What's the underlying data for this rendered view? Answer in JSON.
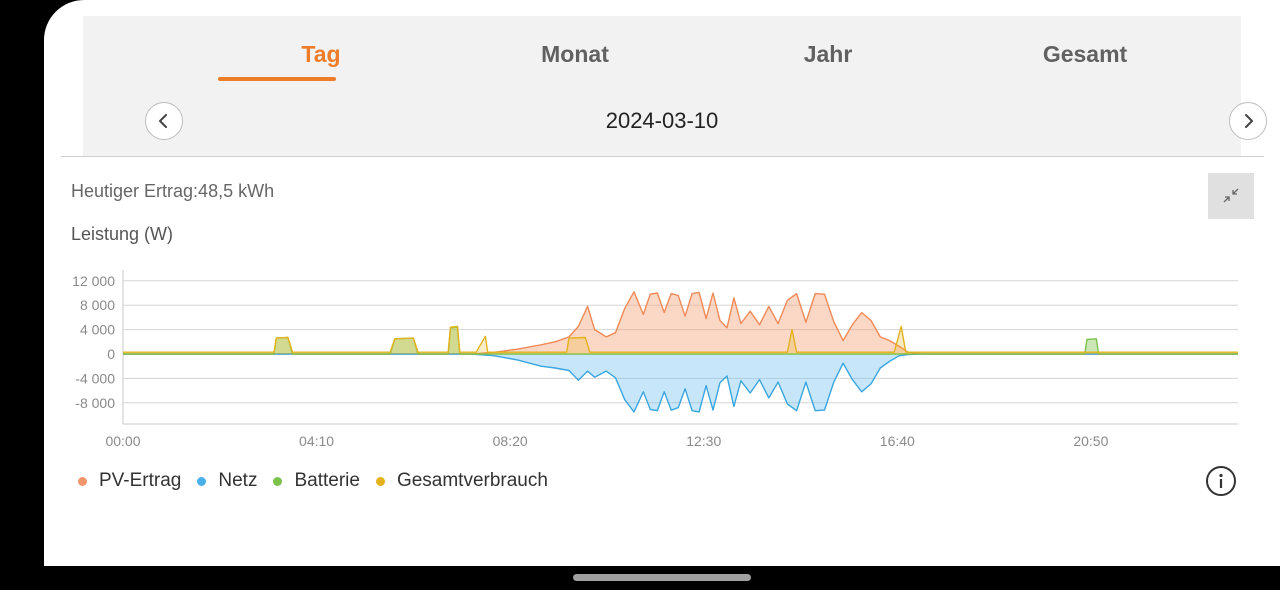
{
  "tabs": [
    {
      "label": "Tag",
      "active": true
    },
    {
      "label": "Monat",
      "active": false
    },
    {
      "label": "Jahr",
      "active": false
    },
    {
      "label": "Gesamt",
      "active": false
    }
  ],
  "date_nav": {
    "date": "2024-03-10"
  },
  "summary": {
    "daily_yield": "Heutiger Ertrag:48,5 kWh"
  },
  "chart_header": {
    "unit_label": "Leistung (W)"
  },
  "icons": {
    "prev": "chevron-left-icon",
    "next": "chevron-right-icon",
    "collapse": "collapse-icon",
    "info": "info-icon"
  },
  "colors": {
    "accent": "#ee7d2a",
    "pv": "#f2956a",
    "grid": "#4ab0e8",
    "battery": "#7cc24a",
    "consumption": "#e3b21d"
  },
  "chart_data": {
    "type": "area",
    "ylim": [
      -12000,
      12000
    ],
    "y_ticks": [
      12000,
      8000,
      4000,
      0,
      -4000,
      -8000
    ],
    "y_tick_labels": [
      "12 000",
      "8 000",
      "4 000",
      "0",
      "-4 000",
      "-8 000"
    ],
    "x_ticks": [
      "00:00",
      "04:10",
      "08:20",
      "12:30",
      "16:40",
      "20:50"
    ],
    "x_range_hours": [
      0,
      24
    ],
    "grid": true,
    "legend_placement": "bottom-left",
    "series": [
      {
        "name": "PV-Ertrag",
        "x": [
          0,
          7.5,
          8.0,
          8.5,
          9.0,
          9.3,
          9.6,
          9.8,
          10.0,
          10.15,
          10.4,
          10.6,
          10.8,
          11.0,
          11.2,
          11.35,
          11.5,
          11.65,
          11.8,
          11.95,
          12.1,
          12.25,
          12.4,
          12.55,
          12.7,
          12.85,
          13.0,
          13.15,
          13.3,
          13.5,
          13.7,
          13.9,
          14.1,
          14.3,
          14.5,
          14.7,
          14.9,
          15.1,
          15.3,
          15.5,
          15.7,
          15.9,
          16.1,
          16.3,
          16.5,
          16.7,
          16.9,
          17.2,
          24
        ],
        "values": [
          0,
          0,
          300,
          800,
          1500,
          2000,
          2800,
          4500,
          7800,
          4000,
          2800,
          3500,
          7500,
          10200,
          6500,
          9800,
          10000,
          6800,
          9900,
          9600,
          6200,
          9900,
          10100,
          5800,
          10000,
          5500,
          4300,
          9200,
          5000,
          7000,
          4800,
          7800,
          5000,
          8800,
          9900,
          5200,
          9900,
          9800,
          5300,
          2200,
          4800,
          6800,
          5500,
          2800,
          2200,
          1300,
          300,
          0,
          0
        ]
      },
      {
        "name": "Netz",
        "x": [
          0,
          7.5,
          8.0,
          8.5,
          9.0,
          9.3,
          9.6,
          9.8,
          10.0,
          10.15,
          10.4,
          10.6,
          10.8,
          11.0,
          11.2,
          11.35,
          11.5,
          11.65,
          11.8,
          11.95,
          12.1,
          12.25,
          12.4,
          12.55,
          12.7,
          12.85,
          13.0,
          13.15,
          13.3,
          13.5,
          13.7,
          13.9,
          14.1,
          14.3,
          14.5,
          14.7,
          14.9,
          15.1,
          15.3,
          15.5,
          15.7,
          15.9,
          16.1,
          16.3,
          16.5,
          16.7,
          16.9,
          17.2,
          24
        ],
        "values": [
          0,
          0,
          -300,
          -1000,
          -2000,
          -2300,
          -2700,
          -4300,
          -2800,
          -3800,
          -2800,
          -3900,
          -7500,
          -9500,
          -6200,
          -9100,
          -9300,
          -6200,
          -9200,
          -8800,
          -5700,
          -9300,
          -9500,
          -5200,
          -9200,
          -4700,
          -3600,
          -8600,
          -4400,
          -6400,
          -4200,
          -7200,
          -4600,
          -8200,
          -9300,
          -4600,
          -9300,
          -9200,
          -4600,
          -1500,
          -4200,
          -6200,
          -4900,
          -2300,
          -1200,
          -300,
          -100,
          0,
          0
        ]
      },
      {
        "name": "Batterie",
        "x": [
          0,
          3.25,
          3.3,
          3.55,
          3.65,
          5.75,
          5.85,
          6.25,
          6.35,
          7.0,
          7.05,
          7.2,
          7.25,
          20.7,
          20.75,
          20.95,
          21.0,
          24
        ],
        "values": [
          0,
          0,
          2600,
          2700,
          0,
          0,
          2500,
          2600,
          0,
          0,
          4300,
          4400,
          0,
          0,
          2400,
          2500,
          0,
          0
        ]
      },
      {
        "name": "Gesamtverbrauch",
        "x": [
          0,
          3.25,
          3.3,
          3.55,
          3.65,
          5.75,
          5.85,
          6.25,
          6.35,
          7.0,
          7.05,
          7.2,
          7.25,
          7.6,
          7.8,
          7.85,
          7.95,
          9.55,
          9.6,
          9.95,
          10.05,
          14.3,
          14.4,
          14.5,
          16.6,
          16.75,
          16.85,
          17.2,
          24
        ],
        "values": [
          300,
          300,
          2600,
          2700,
          300,
          300,
          2500,
          2600,
          300,
          300,
          4400,
          4500,
          300,
          300,
          2900,
          300,
          300,
          300,
          2600,
          2700,
          300,
          300,
          4000,
          300,
          300,
          4500,
          300,
          300,
          300
        ]
      }
    ]
  },
  "legend": [
    {
      "label": "PV-Ertrag"
    },
    {
      "label": "Netz"
    },
    {
      "label": "Batterie"
    },
    {
      "label": "Gesamtverbrauch"
    }
  ]
}
